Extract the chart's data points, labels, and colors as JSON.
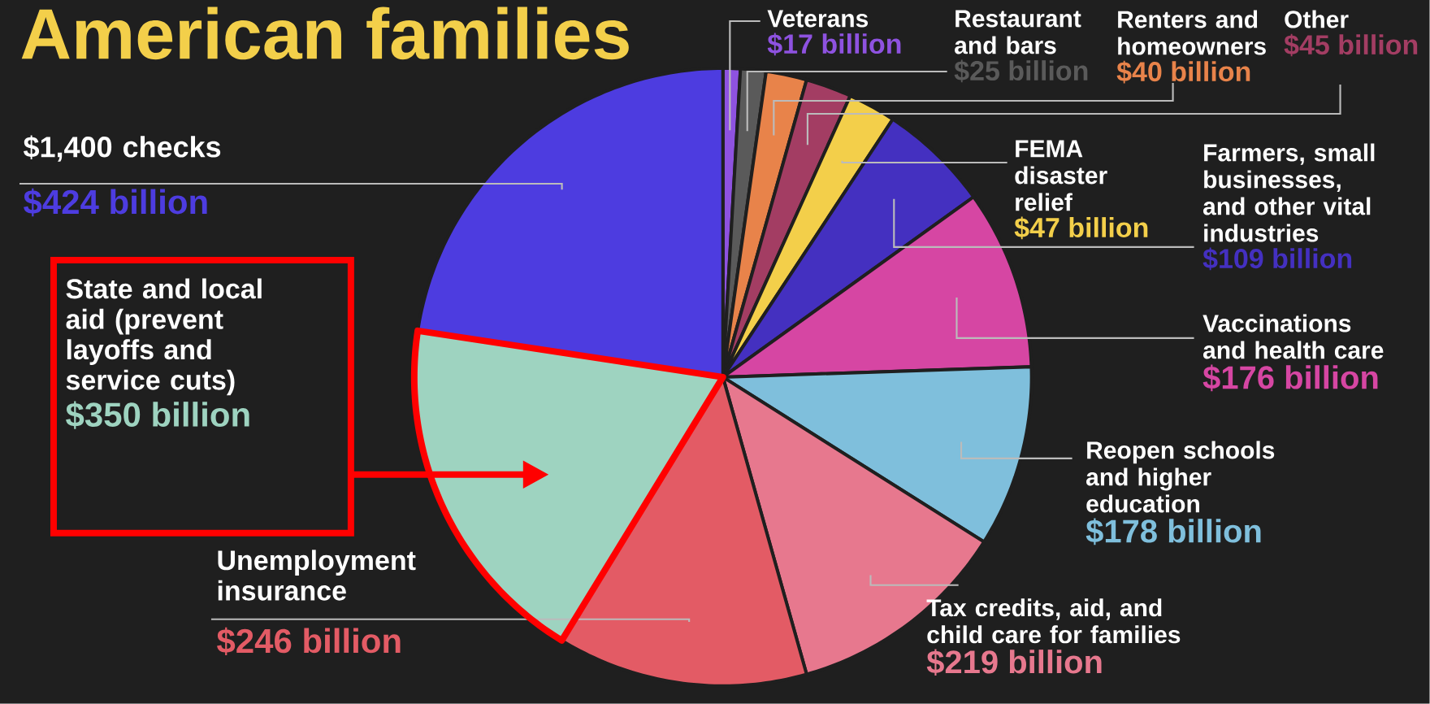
{
  "chart_data": {
    "type": "pie",
    "title": "American families",
    "categories": [
      "Veterans",
      "Restaurant and bars",
      "Renters and homeowners",
      "Other",
      "FEMA disaster relief",
      "Farmers, small businesses, and other vital industries",
      "Vaccinations and health care",
      "Reopen schools and higher education",
      "Tax credits, aid, and child care for families",
      "Unemployment insurance",
      "State and local aid (prevent layoffs and service cuts)",
      "$1,400 checks"
    ],
    "values": [
      17,
      25,
      40,
      45,
      47,
      109,
      176,
      178,
      219,
      246,
      350,
      424
    ],
    "value_labels": [
      "$17 billion",
      "$25 billion",
      "$40 billion",
      "$45 billion",
      "$47 billion",
      "$109 billion",
      "$176 billion",
      "$178 billion",
      "$219 billion",
      "$246 billion",
      "$350 billion",
      "$424 billion"
    ],
    "colors": [
      "#8e52e0",
      "#5a5a5a",
      "#e8834a",
      "#a33d63",
      "#f3cf4a",
      "#4430c0",
      "#d646a3",
      "#7fbfdc",
      "#e7788e",
      "#e35b65",
      "#9ed3c0",
      "#4d3ce0"
    ]
  }
}
